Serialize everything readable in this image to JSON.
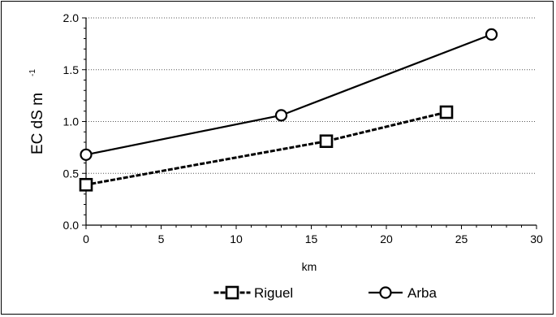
{
  "chart_data": {
    "type": "line",
    "xlabel": "km",
    "ylabel_main": "EC dS m",
    "ylabel_sup": "-1",
    "xlim": [
      0,
      30
    ],
    "ylim": [
      0,
      2.0
    ],
    "x_ticks": [
      "0",
      "5",
      "10",
      "15",
      "20",
      "25",
      "30"
    ],
    "y_ticks": [
      "0.0",
      "0.5",
      "1.0",
      "1.5",
      "2.0"
    ],
    "grid": "horizontal dotted",
    "legend_position": "bottom",
    "series": [
      {
        "name": "Riguel",
        "style": "dotted",
        "marker": "square",
        "x": [
          0,
          16,
          24
        ],
        "y": [
          0.39,
          0.81,
          1.09
        ]
      },
      {
        "name": "Arba",
        "style": "solid",
        "marker": "circle",
        "x": [
          0,
          13,
          27
        ],
        "y": [
          0.68,
          1.06,
          1.84
        ]
      }
    ],
    "colors": {
      "line": "#000000",
      "grid": "#555555",
      "marker_fill": "#ffffff"
    }
  }
}
